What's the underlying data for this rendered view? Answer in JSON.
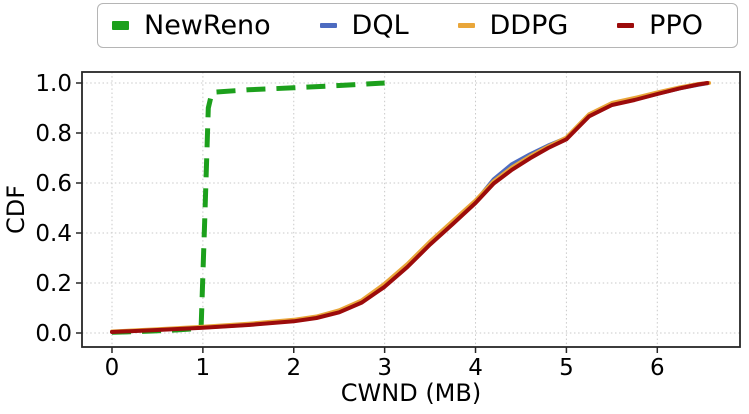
{
  "figure": {
    "background": "#ffffff",
    "spine_color": "#262626",
    "grid_color": "#c9c9c9",
    "text_color": "#000000"
  },
  "chart_data": {
    "type": "line",
    "title": "",
    "xlabel": "CWND (MB)",
    "ylabel": "CDF",
    "xlim": [
      -0.33,
      6.91
    ],
    "ylim": [
      -0.056,
      1.044
    ],
    "xticks": [
      0,
      1,
      2,
      3,
      4,
      5,
      6
    ],
    "xtick_labels": [
      "0",
      "1",
      "2",
      "3",
      "4",
      "5",
      "6"
    ],
    "yticks": [
      0.0,
      0.2,
      0.4,
      0.6,
      0.8,
      1.0
    ],
    "ytick_labels": [
      "0.0",
      "0.2",
      "0.4",
      "0.6",
      "0.8",
      "1.0"
    ],
    "grid": true,
    "grid_style": "dotted",
    "legend_position": "top-outside",
    "series": [
      {
        "name": "NewReno",
        "color": "#1ca01c",
        "style": "dashed",
        "linewidth": 5,
        "x": [
          0,
          0.2,
          0.45,
          0.7,
          0.9,
          0.98,
          1.02,
          1.06,
          1.1,
          1.5,
          2.0,
          2.5,
          3.0
        ],
        "y": [
          0.003,
          0.005,
          0.008,
          0.012,
          0.017,
          0.02,
          0.45,
          0.9,
          0.963,
          0.973,
          0.981,
          0.99,
          1.0
        ]
      },
      {
        "name": "DQL",
        "color": "#4d6bc0",
        "style": "solid",
        "linewidth": 4,
        "x": [
          0,
          0.5,
          1.0,
          1.5,
          2.0,
          2.25,
          2.5,
          2.75,
          3.0,
          3.25,
          3.5,
          3.75,
          4.0,
          4.2,
          4.4,
          4.6,
          4.8,
          5.0,
          5.25,
          5.5,
          5.75,
          6.0,
          6.25,
          6.45,
          6.55
        ],
        "y": [
          0.005,
          0.013,
          0.022,
          0.033,
          0.049,
          0.062,
          0.085,
          0.125,
          0.19,
          0.27,
          0.36,
          0.443,
          0.525,
          0.615,
          0.675,
          0.715,
          0.75,
          0.78,
          0.868,
          0.913,
          0.934,
          0.957,
          0.979,
          0.993,
          0.999
        ]
      },
      {
        "name": "DDPG",
        "color": "#e9a63a",
        "style": "solid",
        "linewidth": 4,
        "x": [
          0,
          0.5,
          1.0,
          1.5,
          2.0,
          2.25,
          2.5,
          2.75,
          3.0,
          3.25,
          3.5,
          3.75,
          4.0,
          4.2,
          4.4,
          4.6,
          4.8,
          5.0,
          5.25,
          5.5,
          5.75,
          6.0,
          6.25,
          6.45,
          6.57
        ],
        "y": [
          0.006,
          0.015,
          0.025,
          0.037,
          0.053,
          0.066,
          0.091,
          0.131,
          0.197,
          0.276,
          0.366,
          0.448,
          0.53,
          0.607,
          0.662,
          0.707,
          0.746,
          0.782,
          0.875,
          0.92,
          0.94,
          0.962,
          0.983,
          0.996,
          1.0
        ]
      },
      {
        "name": "PPO",
        "color": "#9c0b0b",
        "style": "solid",
        "linewidth": 4,
        "x": [
          0,
          0.5,
          1.0,
          1.5,
          2.0,
          2.25,
          2.5,
          2.75,
          3.0,
          3.25,
          3.5,
          3.75,
          4.0,
          4.2,
          4.4,
          4.6,
          4.8,
          5.0,
          5.25,
          5.5,
          5.75,
          6.0,
          6.25,
          6.45,
          6.55
        ],
        "y": [
          0.004,
          0.012,
          0.021,
          0.032,
          0.047,
          0.06,
          0.083,
          0.122,
          0.185,
          0.264,
          0.354,
          0.436,
          0.52,
          0.598,
          0.653,
          0.699,
          0.74,
          0.775,
          0.867,
          0.912,
          0.932,
          0.956,
          0.979,
          0.994,
          1.0
        ]
      }
    ]
  }
}
